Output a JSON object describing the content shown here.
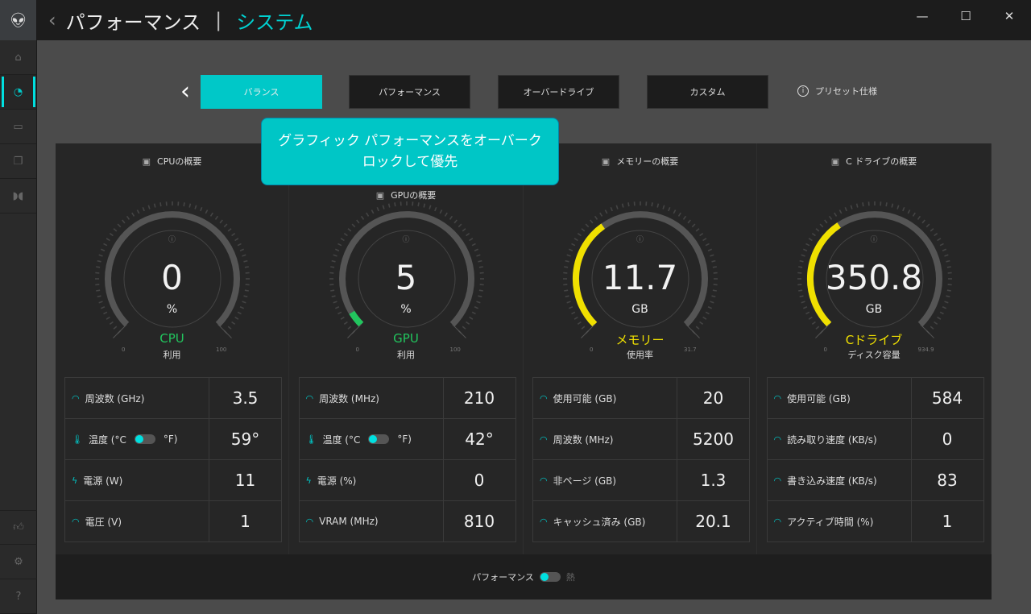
{
  "colors": {
    "accent": "#00c8c8",
    "cpu": "#22c55e",
    "gpu": "#22c55e",
    "memory": "#f0e000",
    "drive": "#f0e000"
  },
  "sidebar": {
    "logo": "alien-head-icon",
    "items": [
      "home-icon",
      "performance-gauge-icon",
      "device-icon",
      "library-icon",
      "fusion-icon"
    ],
    "bottom": [
      "thumbs-up-icon",
      "gear-icon",
      "help-icon"
    ]
  },
  "header": {
    "back": "‹",
    "title": "パフォーマンス",
    "separator": "|",
    "subtitle": "システム"
  },
  "window": {
    "minimize": "—",
    "maximize": "☐",
    "close": "✕"
  },
  "presets": {
    "back": "‹",
    "tabs": [
      "バランス",
      "パフォーマンス",
      "オーバードライブ",
      "カスタム"
    ],
    "active": 0,
    "spec_label": "プリセット仕様",
    "tooltip": "グラフィック パフォーマンスをオーバークロックして優先"
  },
  "columns": [
    {
      "title": "CPUの概要",
      "icon": "cpu-icon",
      "gauge": {
        "value": "0",
        "numeric": 0,
        "unit": "%",
        "name": "CPU",
        "sub": "利用",
        "min": "0",
        "max": "100",
        "max_num": 100,
        "color": "#22c55e"
      },
      "rows": [
        {
          "label": "周波数 (GHz)",
          "icon": "gauge-icon",
          "value": "3.5"
        },
        {
          "label": "温度 (°C",
          "label2": "°F)",
          "icon": "thermometer-icon",
          "value": "59°",
          "toggle": true
        },
        {
          "label": "電源 (W)",
          "icon": "lightning-icon",
          "value": "11"
        },
        {
          "label": "電圧 (V)",
          "icon": "gauge-icon",
          "value": "1"
        }
      ]
    },
    {
      "title": "GPUの概要",
      "icon": "gpu-icon",
      "gauge": {
        "value": "5",
        "numeric": 5,
        "unit": "%",
        "name": "GPU",
        "sub": "利用",
        "min": "0",
        "max": "100",
        "max_num": 100,
        "color": "#22c55e"
      },
      "rows": [
        {
          "label": "周波数 (MHz)",
          "icon": "gauge-icon",
          "value": "210"
        },
        {
          "label": "温度 (°C",
          "label2": "°F)",
          "icon": "thermometer-icon",
          "value": "42°",
          "toggle": true
        },
        {
          "label": "電源 (%)",
          "icon": "lightning-icon",
          "value": "0"
        },
        {
          "label": "VRAM (MHz)",
          "icon": "gauge-icon",
          "value": "810"
        }
      ]
    },
    {
      "title": "メモリーの概要",
      "icon": "memory-icon",
      "gauge": {
        "value": "11.7",
        "numeric": 11.7,
        "unit": "GB",
        "name": "メモリー",
        "sub": "使用率",
        "min": "0",
        "max": "31.7",
        "max_num": 31.7,
        "color": "#f0e000"
      },
      "rows": [
        {
          "label": "使用可能 (GB)",
          "icon": "gauge-icon",
          "value": "20"
        },
        {
          "label": "周波数 (MHz)",
          "icon": "gauge-icon",
          "value": "5200"
        },
        {
          "label": "非ページ (GB)",
          "icon": "gauge-icon",
          "value": "1.3"
        },
        {
          "label": "キャッシュ済み (GB)",
          "icon": "gauge-icon",
          "value": "20.1"
        }
      ]
    },
    {
      "title": "C ドライブの概要",
      "icon": "drive-gauge-icon",
      "gauge": {
        "value": "350.8",
        "numeric": 350.8,
        "unit": "GB",
        "name": "Cドライブ",
        "sub": "ディスク容量",
        "min": "0",
        "max": "934.9",
        "max_num": 934.9,
        "color": "#f0e000"
      },
      "rows": [
        {
          "label": "使用可能 (GB)",
          "icon": "gauge-icon",
          "value": "584"
        },
        {
          "label": "読み取り速度 (KB/s)",
          "icon": "gauge-icon",
          "value": "0"
        },
        {
          "label": "書き込み速度 (KB/s)",
          "icon": "gauge-icon",
          "value": "83"
        },
        {
          "label": "アクティブ時間 (%)",
          "icon": "gauge-icon",
          "value": "1"
        }
      ]
    }
  ],
  "footer": {
    "left": "パフォーマンス",
    "right": "熱"
  }
}
